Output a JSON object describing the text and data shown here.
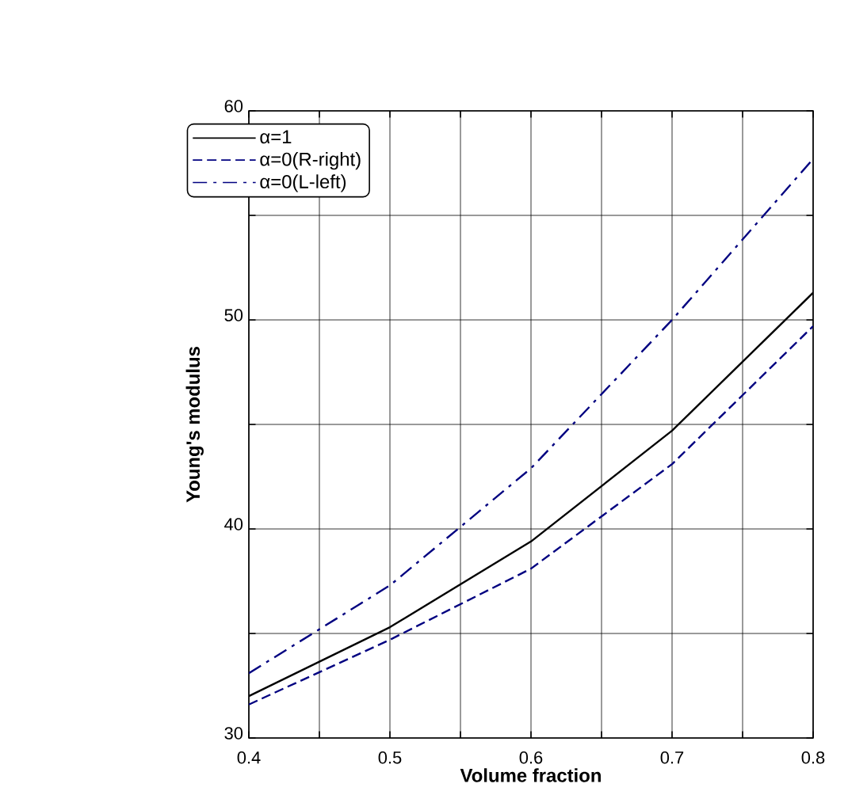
{
  "chart_data": {
    "type": "line",
    "xlabel": "Volume fraction",
    "ylabel": "Young's modulus",
    "x": [
      0.4,
      0.5,
      0.6,
      0.7,
      0.8
    ],
    "series": [
      {
        "name": "α=1",
        "color": "#000000",
        "line_style": "solid",
        "values": [
          32.0,
          35.3,
          39.4,
          44.7,
          51.3
        ]
      },
      {
        "name": "α=0(R-right)",
        "color": "#000080",
        "line_style": "dashed",
        "values": [
          31.6,
          34.7,
          38.1,
          43.1,
          49.7
        ]
      },
      {
        "name": "α=0(L-left)",
        "color": "#000080",
        "line_style": "dashdot",
        "values": [
          33.1,
          37.3,
          42.9,
          50.0,
          57.7
        ]
      }
    ],
    "xlim": [
      0.4,
      0.8
    ],
    "xticks": [
      0.4,
      {
        "value": 0.45,
        "label": null
      },
      0.5,
      {
        "value": 0.55,
        "label": null
      },
      0.6,
      {
        "value": 0.65,
        "label": null
      },
      0.7,
      {
        "value": 0.75,
        "label": null
      },
      0.8
    ],
    "ylim": [
      30,
      60
    ],
    "yticks": [
      30,
      {
        "value": 35,
        "label": null
      },
      40,
      {
        "value": 45,
        "label": null
      },
      50,
      {
        "value": 55,
        "label": null
      },
      60
    ],
    "grid": true,
    "legend": "top left"
  }
}
